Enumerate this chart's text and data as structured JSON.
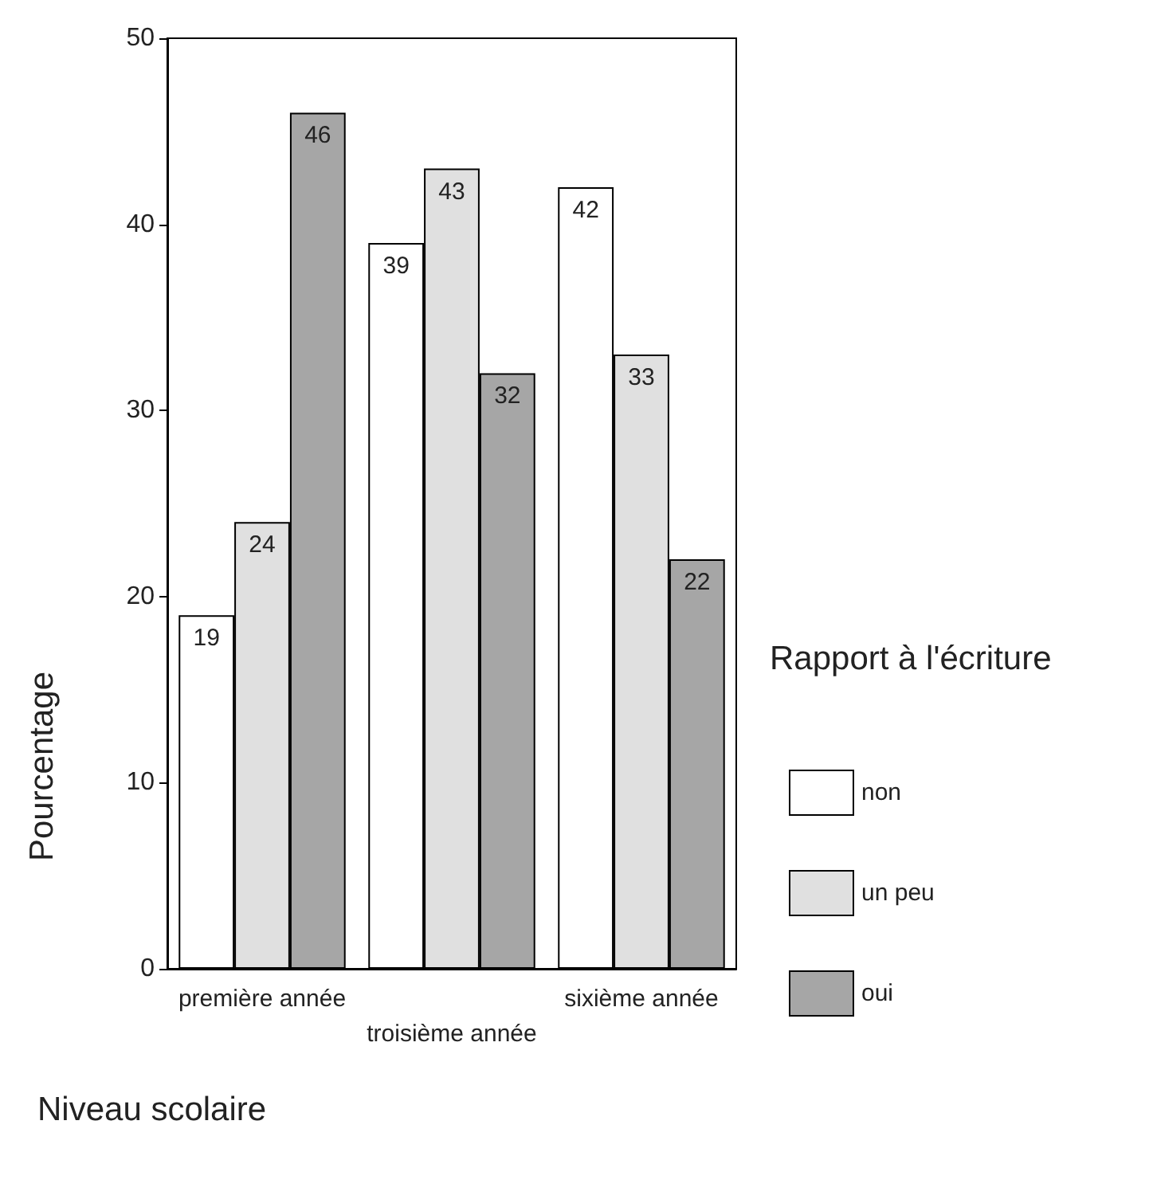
{
  "chart_data": {
    "type": "bar",
    "xlabel": "Niveau scolaire",
    "ylabel": "Pourcentage",
    "legend_title": "Rapport à l'écriture",
    "categories": [
      "première année",
      "troisième année",
      "sixième année"
    ],
    "series": [
      {
        "name": "non",
        "color": "#ffffff",
        "values": [
          19,
          39,
          42
        ]
      },
      {
        "name": "un peu",
        "color": "#e0e0e0",
        "values": [
          24,
          43,
          33
        ]
      },
      {
        "name": "oui",
        "color": "#a6a6a6",
        "values": [
          46,
          32,
          22
        ]
      }
    ],
    "ylim": [
      0,
      50
    ],
    "yticks": [
      0,
      10,
      20,
      30,
      40,
      50
    ],
    "grid": false,
    "legend": "right",
    "data_labels": true
  }
}
